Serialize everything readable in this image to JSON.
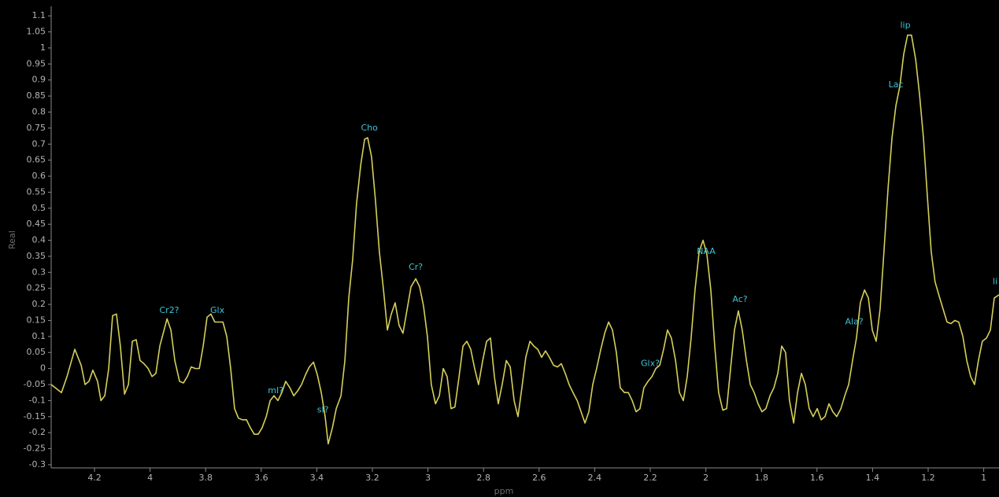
{
  "chart_data": {
    "type": "line",
    "x_label": "ppm",
    "y_label": "Real",
    "color": "#d6cf5a",
    "xlim": [
      4.356,
      0.945
    ],
    "ylim": [
      -0.31,
      1.125
    ],
    "xticks": [
      4.2,
      4,
      3.8,
      3.6,
      3.4,
      3.2,
      3,
      2.8,
      2.6,
      2.4,
      2.2,
      2,
      1.8,
      1.6,
      1.4,
      1.2,
      1
    ],
    "yticks": [
      -0.3,
      -0.25,
      -0.2,
      -0.15,
      -0.1,
      -0.05,
      0,
      0.05,
      0.1,
      0.15,
      0.2,
      0.25,
      0.3,
      0.35,
      0.4,
      0.45,
      0.5,
      0.55,
      0.6,
      0.65,
      0.7,
      0.75,
      0.8,
      0.85,
      0.9,
      0.95,
      1,
      1.05,
      1.1
    ],
    "x": [
      4.356,
      4.319,
      4.299,
      4.271,
      4.248,
      4.234,
      4.22,
      4.206,
      4.189,
      4.177,
      4.163,
      4.149,
      4.135,
      4.121,
      4.107,
      4.092,
      4.078,
      4.064,
      4.05,
      4.036,
      4.022,
      4.007,
      3.993,
      3.979,
      3.965,
      3.939,
      3.925,
      3.911,
      3.894,
      3.88,
      3.866,
      3.852,
      3.837,
      3.823,
      3.809,
      3.795,
      3.781,
      3.767,
      3.752,
      3.738,
      3.724,
      3.71,
      3.696,
      3.682,
      3.667,
      3.653,
      3.639,
      3.625,
      3.611,
      3.597,
      3.582,
      3.568,
      3.554,
      3.54,
      3.526,
      3.512,
      3.497,
      3.483,
      3.469,
      3.455,
      3.441,
      3.427,
      3.412,
      3.398,
      3.384,
      3.37,
      3.359,
      3.344,
      3.33,
      3.313,
      3.299,
      3.285,
      3.271,
      3.257,
      3.242,
      3.228,
      3.217,
      3.203,
      3.189,
      3.175,
      3.16,
      3.146,
      3.132,
      3.118,
      3.104,
      3.09,
      3.075,
      3.061,
      3.044,
      3.03,
      3.016,
      3.002,
      2.988,
      2.973,
      2.959,
      2.945,
      2.931,
      2.917,
      2.903,
      2.888,
      2.874,
      2.86,
      2.846,
      2.832,
      2.818,
      2.803,
      2.789,
      2.775,
      2.761,
      2.747,
      2.733,
      2.718,
      2.704,
      2.69,
      2.676,
      2.662,
      2.648,
      2.633,
      2.619,
      2.605,
      2.591,
      2.577,
      2.563,
      2.548,
      2.534,
      2.52,
      2.506,
      2.492,
      2.478,
      2.463,
      2.449,
      2.435,
      2.421,
      2.407,
      2.393,
      2.378,
      2.364,
      2.35,
      2.336,
      2.322,
      2.308,
      2.293,
      2.279,
      2.265,
      2.251,
      2.237,
      2.223,
      2.208,
      2.194,
      2.18,
      2.166,
      2.152,
      2.138,
      2.124,
      2.109,
      2.095,
      2.081,
      2.067,
      2.053,
      2.039,
      2.024,
      2.01,
      1.996,
      1.982,
      1.968,
      1.954,
      1.939,
      1.925,
      1.911,
      1.897,
      1.883,
      1.869,
      1.854,
      1.84,
      1.826,
      1.812,
      1.798,
      1.784,
      1.769,
      1.755,
      1.741,
      1.727,
      1.713,
      1.699,
      1.684,
      1.67,
      1.656,
      1.642,
      1.628,
      1.614,
      1.599,
      1.585,
      1.571,
      1.557,
      1.543,
      1.529,
      1.514,
      1.5,
      1.486,
      1.472,
      1.458,
      1.444,
      1.429,
      1.415,
      1.401,
      1.387,
      1.373,
      1.359,
      1.344,
      1.33,
      1.316,
      1.302,
      1.288,
      1.274,
      1.26,
      1.245,
      1.231,
      1.217,
      1.203,
      1.189,
      1.175,
      1.16,
      1.146,
      1.132,
      1.118,
      1.104,
      1.09,
      1.075,
      1.061,
      1.047,
      1.033,
      1.019,
      1.005,
      0.99,
      0.976,
      0.962,
      0.945
    ],
    "values": [
      -0.05,
      -0.075,
      -0.025,
      0.06,
      0.01,
      -0.05,
      -0.04,
      -0.005,
      -0.04,
      -0.1,
      -0.085,
      0,
      0.165,
      0.17,
      0.07,
      -0.08,
      -0.05,
      0.085,
      0.09,
      0.025,
      0.015,
      0,
      -0.025,
      -0.015,
      0.07,
      0.155,
      0.12,
      0.025,
      -0.04,
      -0.045,
      -0.025,
      0.005,
      0,
      0,
      0.07,
      0.16,
      0.17,
      0.145,
      0.145,
      0.145,
      0.1,
      0,
      -0.125,
      -0.155,
      -0.16,
      -0.16,
      -0.185,
      -0.205,
      -0.205,
      -0.185,
      -0.15,
      -0.1,
      -0.085,
      -0.1,
      -0.075,
      -0.04,
      -0.06,
      -0.085,
      -0.07,
      -0.05,
      -0.02,
      0.005,
      0.02,
      -0.02,
      -0.075,
      -0.15,
      -0.235,
      -0.185,
      -0.125,
      -0.085,
      0.025,
      0.22,
      0.34,
      0.515,
      0.635,
      0.715,
      0.72,
      0.66,
      0.525,
      0.365,
      0.245,
      0.12,
      0.17,
      0.205,
      0.135,
      0.11,
      0.185,
      0.255,
      0.28,
      0.255,
      0.195,
      0.1,
      -0.05,
      -0.11,
      -0.085,
      0,
      -0.025,
      -0.125,
      -0.12,
      -0.025,
      0.07,
      0.085,
      0.06,
      0,
      -0.05,
      0.025,
      0.085,
      0.095,
      -0.025,
      -0.11,
      -0.05,
      0.025,
      0.005,
      -0.1,
      -0.15,
      -0.06,
      0.035,
      0.085,
      0.07,
      0.06,
      0.035,
      0.055,
      0.035,
      0.01,
      0.005,
      0.015,
      -0.015,
      -0.05,
      -0.075,
      -0.1,
      -0.135,
      -0.17,
      -0.135,
      -0.05,
      0,
      0.06,
      0.11,
      0.145,
      0.12,
      0.05,
      -0.06,
      -0.075,
      -0.075,
      -0.1,
      -0.135,
      -0.125,
      -0.06,
      -0.04,
      -0.025,
      0,
      0.01,
      0.06,
      0.12,
      0.095,
      0.025,
      -0.075,
      -0.1,
      -0.025,
      0.095,
      0.245,
      0.365,
      0.4,
      0.355,
      0.245,
      0.07,
      -0.075,
      -0.13,
      -0.125,
      0,
      0.12,
      0.18,
      0.12,
      0.025,
      -0.05,
      -0.075,
      -0.11,
      -0.135,
      -0.125,
      -0.085,
      -0.06,
      -0.015,
      0.07,
      0.05,
      -0.1,
      -0.17,
      -0.075,
      -0.015,
      -0.05,
      -0.125,
      -0.15,
      -0.125,
      -0.16,
      -0.15,
      -0.11,
      -0.135,
      -0.15,
      -0.125,
      -0.085,
      -0.05,
      0.025,
      0.095,
      0.205,
      0.245,
      0.22,
      0.12,
      0.085,
      0.185,
      0.365,
      0.565,
      0.72,
      0.82,
      0.88,
      0.98,
      1.04,
      1.04,
      0.965,
      0.855,
      0.72,
      0.54,
      0.365,
      0.27,
      0.225,
      0.185,
      0.145,
      0.14,
      0.15,
      0.145,
      0.1,
      0.025,
      -0.025,
      -0.05,
      0.025,
      0.085,
      0.095,
      0.12,
      0.22,
      0.23
    ],
    "annotations": [
      {
        "text": "Cr2?",
        "x": 3.931,
        "y": 0.18
      },
      {
        "text": "Glx",
        "x": 3.758,
        "y": 0.18
      },
      {
        "text": "mI?",
        "x": 3.548,
        "y": -0.07
      },
      {
        "text": "sI?",
        "x": 3.378,
        "y": -0.13
      },
      {
        "text": "Cho",
        "x": 3.211,
        "y": 0.75
      },
      {
        "text": "Cr?",
        "x": 3.044,
        "y": 0.315
      },
      {
        "text": "Glx?",
        "x": 2.2,
        "y": 0.015
      },
      {
        "text": "NAA",
        "x": 1.999,
        "y": 0.365
      },
      {
        "text": "Ac?",
        "x": 1.877,
        "y": 0.215
      },
      {
        "text": "Ala?",
        "x": 1.466,
        "y": 0.145
      },
      {
        "text": "Lac",
        "x": 1.316,
        "y": 0.885
      },
      {
        "text": "lip",
        "x": 1.282,
        "y": 1.07
      },
      {
        "text": "li",
        "x": 0.959,
        "y": 0.27
      }
    ]
  }
}
